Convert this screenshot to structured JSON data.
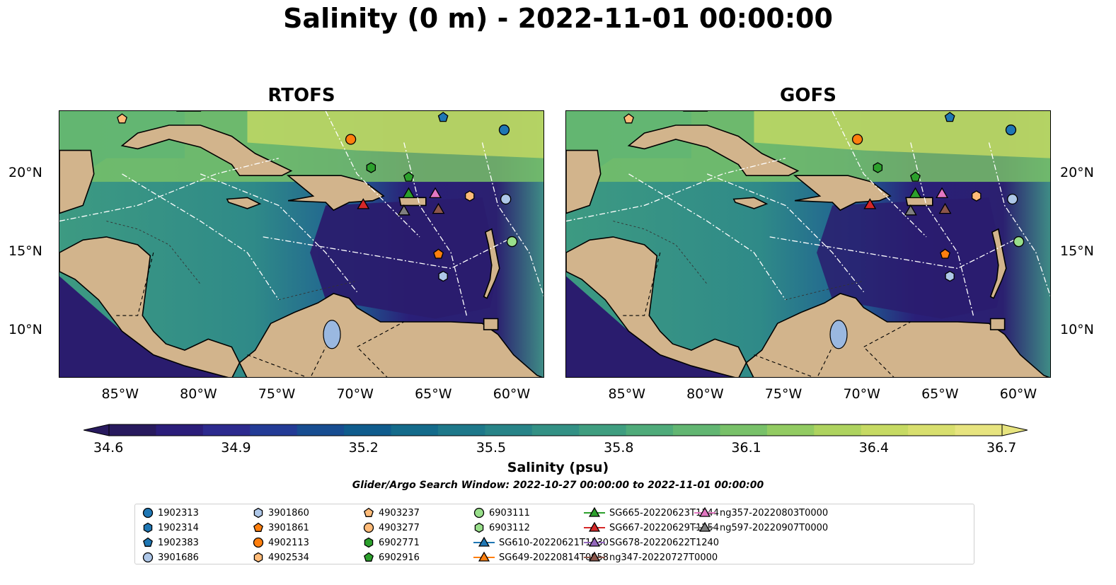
{
  "title": "Salinity (0 m) - 2022-11-01 00:00:00",
  "chart_data": [
    {
      "type": "heatmap",
      "title": "RTOFS",
      "variable": "Salinity (0 m)",
      "x_ticks": [
        "85°W",
        "80°W",
        "75°W",
        "70°W",
        "65°W",
        "60°W"
      ],
      "y_ticks": [
        "20°N",
        "15°N",
        "10°N"
      ],
      "xlim": [
        -89,
        -58
      ],
      "ylim": [
        7,
        24
      ],
      "land_color": "#d2b48c",
      "ocean_low_salinity_region": "eastern Caribbean (dark purple ~34.6)",
      "markers": [
        {
          "id": "4903237",
          "lon": -85.0,
          "lat": 23.5
        },
        {
          "id": "1902383",
          "lon": -64.5,
          "lat": 23.6
        },
        {
          "id": "1902313",
          "lon": -60.6,
          "lat": 22.8
        },
        {
          "id": "4902113",
          "lon": -70.4,
          "lat": 22.2
        },
        {
          "id": "6902771",
          "lon": -69.1,
          "lat": 20.4
        },
        {
          "id": "6902916",
          "lon": -66.7,
          "lat": 19.8
        },
        {
          "id": "SG665-20220623T1144",
          "lon": -66.7,
          "lat": 18.8
        },
        {
          "id": "ng357-20220803T0000",
          "lon": -65.0,
          "lat": 18.8
        },
        {
          "id": "4902534",
          "lon": -62.8,
          "lat": 18.6
        },
        {
          "id": "3901686",
          "lon": -60.5,
          "lat": 18.4
        },
        {
          "id": "SG667-20220629T1254",
          "lon": -69.6,
          "lat": 18.1
        },
        {
          "id": "ng597-20220907T0000",
          "lon": -67.0,
          "lat": 17.7
        },
        {
          "id": "ng347-20220727T0000",
          "lon": -64.8,
          "lat": 17.8
        },
        {
          "id": "6903111",
          "lon": -60.1,
          "lat": 15.7
        },
        {
          "id": "3901861",
          "lon": -64.8,
          "lat": 14.9
        },
        {
          "id": "3901860",
          "lon": -64.5,
          "lat": 13.5
        }
      ]
    },
    {
      "type": "heatmap",
      "title": "GOFS",
      "variable": "Salinity (0 m)",
      "x_ticks": [
        "85°W",
        "80°W",
        "75°W",
        "70°W",
        "65°W",
        "60°W"
      ],
      "y_ticks": [
        "20°N",
        "15°N",
        "10°N"
      ],
      "xlim": [
        -89,
        -58
      ],
      "ylim": [
        7,
        24
      ],
      "land_color": "#d2b48c",
      "markers": [
        {
          "id": "4903237",
          "lon": -85.0,
          "lat": 23.5
        },
        {
          "id": "1902383",
          "lon": -64.5,
          "lat": 23.6
        },
        {
          "id": "1902313",
          "lon": -60.6,
          "lat": 22.8
        },
        {
          "id": "4902113",
          "lon": -70.4,
          "lat": 22.2
        },
        {
          "id": "6902771",
          "lon": -69.1,
          "lat": 20.4
        },
        {
          "id": "6902916",
          "lon": -66.7,
          "lat": 19.8
        },
        {
          "id": "SG665-20220623T1144",
          "lon": -66.7,
          "lat": 18.8
        },
        {
          "id": "ng357-20220803T0000",
          "lon": -65.0,
          "lat": 18.8
        },
        {
          "id": "4902534",
          "lon": -62.8,
          "lat": 18.6
        },
        {
          "id": "3901686",
          "lon": -60.5,
          "lat": 18.4
        },
        {
          "id": "SG667-20220629T1254",
          "lon": -69.6,
          "lat": 18.1
        },
        {
          "id": "ng597-20220907T0000",
          "lon": -67.0,
          "lat": 17.7
        },
        {
          "id": "ng347-20220727T0000",
          "lon": -64.8,
          "lat": 17.8
        },
        {
          "id": "6903111",
          "lon": -60.1,
          "lat": 15.7
        },
        {
          "id": "3901861",
          "lon": -64.8,
          "lat": 14.9
        },
        {
          "id": "3901860",
          "lon": -64.5,
          "lat": 13.5
        }
      ]
    }
  ],
  "colorbar": {
    "label": "Salinity (psu)",
    "ticks": [
      "34.6",
      "34.9",
      "35.2",
      "35.5",
      "35.8",
      "36.1",
      "36.4",
      "36.7"
    ],
    "range": [
      34.6,
      36.7
    ],
    "extend": "both",
    "colors": [
      "#281a5e",
      "#2b1d7a",
      "#2c2a8e",
      "#233b96",
      "#174d91",
      "#0f5c8d",
      "#146b8b",
      "#1e788a",
      "#288488",
      "#339185",
      "#3f9e80",
      "#4fab7a",
      "#62b672",
      "#78c169",
      "#92cb62",
      "#aed35f",
      "#c6da63",
      "#d8df6e",
      "#e7e47f"
    ]
  },
  "search_window": "Glider/Argo Search Window: 2022-10-27 00:00:00 to 2022-11-01 00:00:00",
  "legend": {
    "items": [
      {
        "label": "1902313",
        "marker": "circle",
        "color": "#1f77b4"
      },
      {
        "label": "1902314",
        "marker": "hexagon",
        "color": "#1f77b4"
      },
      {
        "label": "1902383",
        "marker": "pentagon",
        "color": "#1f77b4"
      },
      {
        "label": "3901686",
        "marker": "circle",
        "color": "#aec7e8"
      },
      {
        "label": "3901860",
        "marker": "hexagon",
        "color": "#aec7e8"
      },
      {
        "label": "3901861",
        "marker": "pentagon",
        "color": "#ff7f0e"
      },
      {
        "label": "4902113",
        "marker": "circle",
        "color": "#ff7f0e"
      },
      {
        "label": "4902534",
        "marker": "hexagon",
        "color": "#ffbb78"
      },
      {
        "label": "4903237",
        "marker": "pentagon",
        "color": "#ffbb78"
      },
      {
        "label": "4903277",
        "marker": "circle",
        "color": "#ffbb78"
      },
      {
        "label": "6902771",
        "marker": "hexagon",
        "color": "#2ca02c"
      },
      {
        "label": "6902916",
        "marker": "pentagon",
        "color": "#2ca02c"
      },
      {
        "label": "6903111",
        "marker": "circle",
        "color": "#98df8a"
      },
      {
        "label": "6903112",
        "marker": "hexagon",
        "color": "#98df8a"
      },
      {
        "label": "SG610-20220621T1130",
        "marker": "triangle",
        "color": "#1f77b4"
      },
      {
        "label": "SG649-20220814T0958",
        "marker": "triangle",
        "color": "#ff7f0e"
      },
      {
        "label": "SG665-20220623T1144",
        "marker": "triangle",
        "color": "#2ca02c"
      },
      {
        "label": "SG667-20220629T1254",
        "marker": "triangle",
        "color": "#d62728"
      },
      {
        "label": "SG678-20220622T1240",
        "marker": "triangle",
        "color": "#9467bd"
      },
      {
        "label": "ng347-20220727T0000",
        "marker": "triangle",
        "color": "#8c564b"
      },
      {
        "label": "ng357-20220803T0000",
        "marker": "triangle",
        "color": "#e377c2"
      },
      {
        "label": "ng597-20220907T0000",
        "marker": "triangle",
        "color": "#7f7f7f"
      }
    ]
  }
}
